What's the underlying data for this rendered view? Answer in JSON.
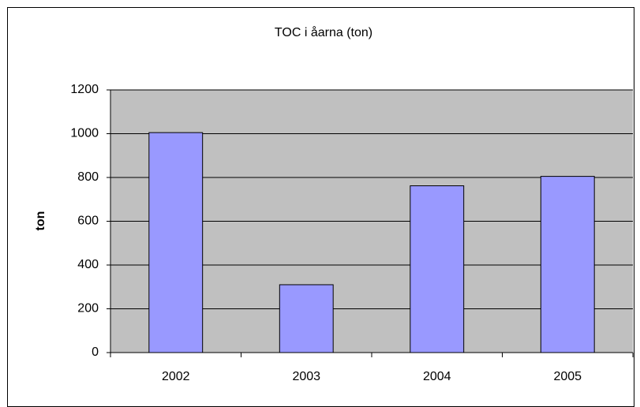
{
  "chart_data": {
    "type": "bar",
    "title": "TOC i åarna (ton)",
    "y_label": "ton",
    "categories": [
      "2002",
      "2003",
      "2004",
      "2005"
    ],
    "values": [
      1005,
      310,
      762,
      805
    ],
    "color": "#9999ff",
    "ylim": [
      0,
      1200
    ],
    "yticks": [
      0,
      200,
      400,
      600,
      800,
      1000,
      1200
    ],
    "grid": true
  }
}
